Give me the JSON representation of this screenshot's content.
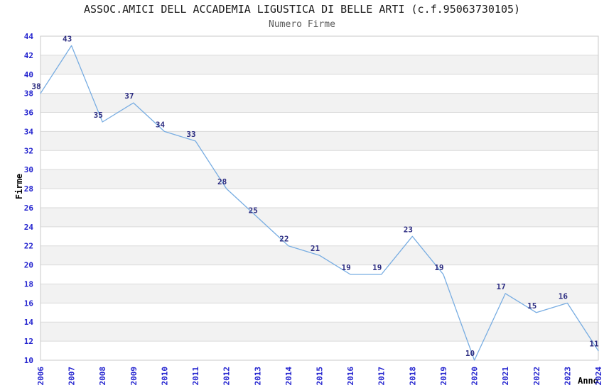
{
  "header": {
    "title": "ASSOC.AMICI DELL ACCADEMIA LIGUSTICA DI BELLE ARTI (c.f.95063730105)",
    "subtitle": "Numero Firme"
  },
  "axes": {
    "y_label": "Firme",
    "x_label": "Anno",
    "y_min": 10,
    "y_max": 44,
    "y_tick_step": 2
  },
  "chart_data": {
    "type": "line",
    "title": "ASSOC.AMICI DELL ACCADEMIA LIGUSTICA DI BELLE ARTI (c.f.95063730105)",
    "subtitle": "Numero Firme",
    "xlabel": "Anno",
    "ylabel": "Firme",
    "x": [
      2006,
      2007,
      2008,
      2009,
      2010,
      2011,
      2012,
      2013,
      2014,
      2015,
      2016,
      2017,
      2018,
      2019,
      2020,
      2021,
      2022,
      2023,
      2024
    ],
    "series": [
      {
        "name": "Numero Firme",
        "values": [
          38,
          43,
          35,
          37,
          34,
          33,
          28,
          25,
          22,
          21,
          19,
          19,
          23,
          19,
          10,
          17,
          15,
          16,
          11
        ]
      }
    ],
    "ylim": [
      10,
      44
    ],
    "xlim": [
      2006,
      2024
    ],
    "grid": "horizontal alternating shaded bands, step 2, no vertical gridlines",
    "legend_position": "none",
    "point_labels_shown": true
  },
  "colors": {
    "line": "#78ade2",
    "tick_label_blue": "#2424cf",
    "point_label_navy": "#2b2b80",
    "band_gray": "#f2f2f2",
    "gridline": "#dadada",
    "plot_border": "#c8c8c8",
    "title_text": "#1a1a1a",
    "subtitle_text": "#5a5a5a"
  }
}
